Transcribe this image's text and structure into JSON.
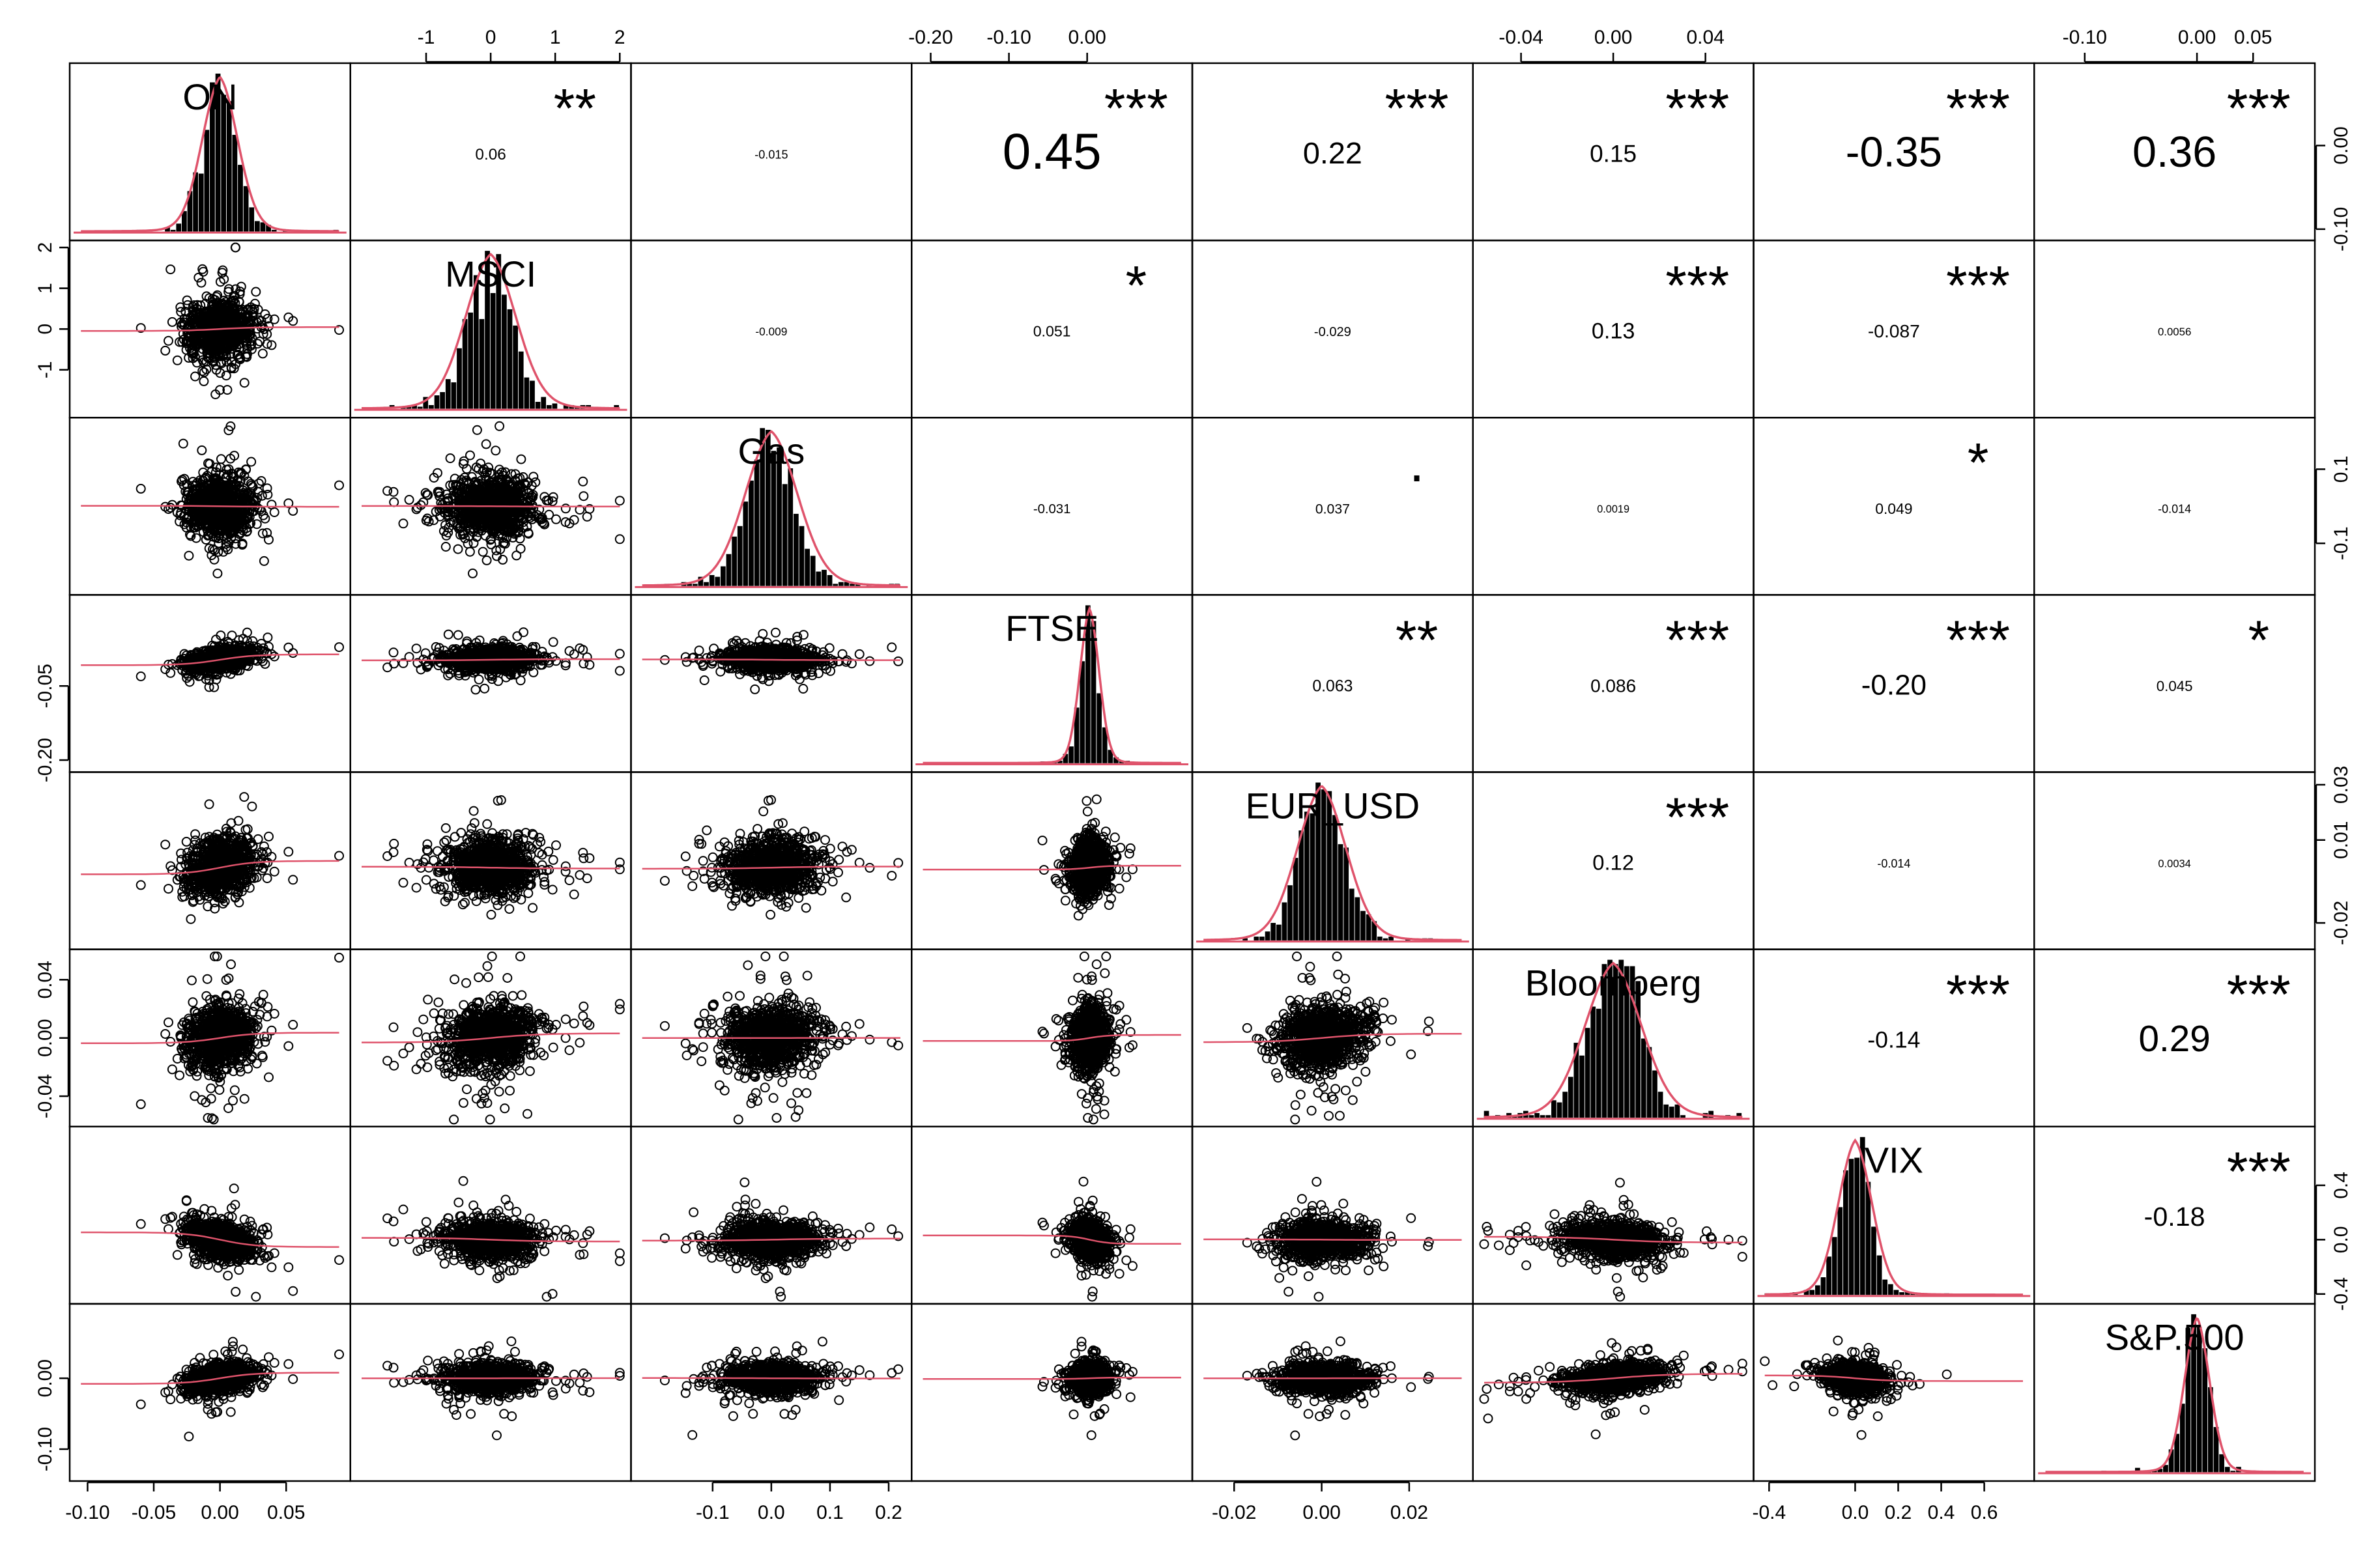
{
  "colors": {
    "axis": "#000000",
    "points": "#000000",
    "fit_line": "#DF536B",
    "stars": "#DF536B",
    "histogram": "#000000"
  },
  "chart_data": {
    "type": "scatter",
    "variables": [
      "ON",
      "MSCI",
      "Gas",
      "FTSE",
      "EUR_USD",
      "Bloomberg",
      "VIX",
      "S&P.500"
    ],
    "ranges": {
      "ON": [
        -0.105,
        0.09
      ],
      "MSCI": [
        -2.0,
        2.0
      ],
      "Gas": [
        -0.22,
        0.22
      ],
      "FTSE": [
        -0.21,
        0.12
      ],
      "EUR_USD": [
        -0.027,
        0.032
      ],
      "Bloomberg": [
        -0.056,
        0.056
      ],
      "VIX": [
        -0.42,
        0.78
      ],
      "S&P.500": [
        -0.135,
        0.095
      ]
    },
    "axis_ticks": {
      "top": [
        {
          "col": 1,
          "ticks": [
            "-1",
            "0",
            "1",
            "2"
          ],
          "values": [
            -1,
            0,
            1,
            2
          ]
        },
        {
          "col": 3,
          "ticks": [
            "-0.20",
            "-0.10",
            "0.00"
          ],
          "values": [
            -0.2,
            -0.1,
            0.0
          ]
        },
        {
          "col": 5,
          "ticks": [
            "-0.04",
            "0.00",
            "0.04"
          ],
          "values": [
            -0.04,
            0.0,
            0.04
          ]
        },
        {
          "col": 7,
          "ticks": [
            "-0.10",
            "0.00",
            "0.05"
          ],
          "values": [
            -0.1,
            0.0,
            0.05
          ]
        }
      ],
      "bottom": [
        {
          "col": 0,
          "ticks": [
            "-0.10",
            "-0.05",
            "0.00",
            "0.05"
          ],
          "values": [
            -0.1,
            -0.05,
            0.0,
            0.05
          ]
        },
        {
          "col": 2,
          "ticks": [
            "-0.1",
            "0.0",
            "0.1",
            "0.2"
          ],
          "values": [
            -0.1,
            0.0,
            0.1,
            0.2
          ]
        },
        {
          "col": 4,
          "ticks": [
            "-0.02",
            "0.00",
            "0.02"
          ],
          "values": [
            -0.02,
            0.0,
            0.02
          ]
        },
        {
          "col": 6,
          "ticks": [
            "-0.4",
            "0.0",
            "0.2",
            "0.4",
            "0.6"
          ],
          "values": [
            -0.4,
            0.0,
            0.2,
            0.4,
            0.6
          ]
        }
      ],
      "left": [
        {
          "row": 1,
          "ticks": [
            "-1",
            "0",
            "1",
            "2"
          ],
          "values": [
            -1,
            0,
            1,
            2
          ]
        },
        {
          "row": 3,
          "ticks": [
            "-0.20",
            "-0.05"
          ],
          "values": [
            -0.2,
            -0.05
          ]
        },
        {
          "row": 5,
          "ticks": [
            "-0.04",
            "0.00",
            "0.04"
          ],
          "values": [
            -0.04,
            0.0,
            0.04
          ]
        },
        {
          "row": 7,
          "ticks": [
            "-0.10",
            "0.00"
          ],
          "values": [
            -0.1,
            0.0
          ]
        }
      ],
      "right": [
        {
          "row": 0,
          "ticks": [
            "-0.10",
            "0.00"
          ],
          "values": [
            -0.1,
            0.0
          ]
        },
        {
          "row": 2,
          "ticks": [
            "-0.1",
            "0.1"
          ],
          "values": [
            -0.1,
            0.1
          ]
        },
        {
          "row": 4,
          "ticks": [
            "-0.02",
            "0.01",
            "0.03"
          ],
          "values": [
            -0.02,
            0.01,
            0.03
          ]
        },
        {
          "row": 6,
          "ticks": [
            "-0.4",
            "0.0",
            "0.4"
          ],
          "values": [
            -0.4,
            0.0,
            0.4
          ]
        }
      ]
    },
    "correlations": [
      {
        "row": 0,
        "col": 1,
        "value": "0.06",
        "stars": "**"
      },
      {
        "row": 0,
        "col": 2,
        "value": "-0.015",
        "stars": ""
      },
      {
        "row": 0,
        "col": 3,
        "value": "0.45",
        "stars": "***"
      },
      {
        "row": 0,
        "col": 4,
        "value": "0.22",
        "stars": "***"
      },
      {
        "row": 0,
        "col": 5,
        "value": "0.15",
        "stars": "***"
      },
      {
        "row": 0,
        "col": 6,
        "value": "-0.35",
        "stars": "***"
      },
      {
        "row": 0,
        "col": 7,
        "value": "0.36",
        "stars": "***"
      },
      {
        "row": 1,
        "col": 2,
        "value": "-0.009",
        "stars": ""
      },
      {
        "row": 1,
        "col": 3,
        "value": "0.051",
        "stars": "*"
      },
      {
        "row": 1,
        "col": 4,
        "value": "-0.029",
        "stars": ""
      },
      {
        "row": 1,
        "col": 5,
        "value": "0.13",
        "stars": "***"
      },
      {
        "row": 1,
        "col": 6,
        "value": "-0.087",
        "stars": "***"
      },
      {
        "row": 1,
        "col": 7,
        "value": "0.0056",
        "stars": ""
      },
      {
        "row": 2,
        "col": 3,
        "value": "-0.031",
        "stars": ""
      },
      {
        "row": 2,
        "col": 4,
        "value": "0.037",
        "stars": "."
      },
      {
        "row": 2,
        "col": 5,
        "value": "0.0019",
        "stars": ""
      },
      {
        "row": 2,
        "col": 6,
        "value": "0.049",
        "stars": "*"
      },
      {
        "row": 2,
        "col": 7,
        "value": "-0.014",
        "stars": ""
      },
      {
        "row": 3,
        "col": 4,
        "value": "0.063",
        "stars": "**"
      },
      {
        "row": 3,
        "col": 5,
        "value": "0.086",
        "stars": "***"
      },
      {
        "row": 3,
        "col": 6,
        "value": "-0.20",
        "stars": "***"
      },
      {
        "row": 3,
        "col": 7,
        "value": "0.045",
        "stars": "*"
      },
      {
        "row": 4,
        "col": 5,
        "value": "0.12",
        "stars": "***"
      },
      {
        "row": 4,
        "col": 6,
        "value": "-0.014",
        "stars": ""
      },
      {
        "row": 4,
        "col": 7,
        "value": "0.0034",
        "stars": ""
      },
      {
        "row": 5,
        "col": 6,
        "value": "-0.14",
        "stars": "***"
      },
      {
        "row": 5,
        "col": 7,
        "value": "0.29",
        "stars": "***"
      },
      {
        "row": 6,
        "col": 7,
        "value": "-0.18",
        "stars": "***"
      }
    ],
    "distributions": [
      {
        "var": "ON",
        "center": 0.0,
        "sd": 0.012
      },
      {
        "var": "MSCI",
        "center": 0.0,
        "sd": 0.35
      },
      {
        "var": "Gas",
        "center": 0.0,
        "sd": 0.04
      },
      {
        "var": "FTSE",
        "center": 0.003,
        "sd": 0.011
      },
      {
        "var": "EUR_USD",
        "center": 0.0,
        "sd": 0.005
      },
      {
        "var": "Bloomberg",
        "center": 0.0,
        "sd": 0.011
      },
      {
        "var": "VIX",
        "center": 0.0,
        "sd": 0.07
      },
      {
        "var": "S&P.500",
        "center": 0.0,
        "sd": 0.01
      }
    ],
    "grid": false,
    "legend": "none"
  }
}
